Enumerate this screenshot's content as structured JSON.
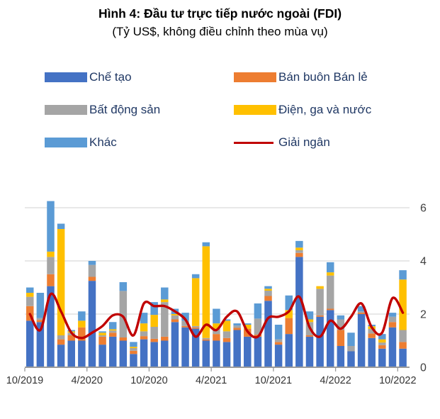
{
  "title": "Hình 4: Đầu tư trực tiếp nước ngoài (FDI)",
  "subtitle": "(Tỷ US$, không điều chỉnh theo mùa vụ)",
  "colors": {
    "manufacturing_blue": "#4472C4",
    "wholesale_orange": "#ED7D31",
    "real_estate_gray": "#A5A5A5",
    "electricity_yellow": "#FFC000",
    "other_light_blue": "#5B9BD5",
    "disbursement_red": "#C00000",
    "gridline": "#D9D9D9",
    "axis_line": "#9B9B9B",
    "axis_text": "#404040",
    "legend_text": "#203864"
  },
  "legend": {
    "items": [
      {
        "id": "che-tao",
        "label": "Chế tạo",
        "color": "#4472C4",
        "type": "bar"
      },
      {
        "id": "ban-buon-ban-le",
        "label": "Bán buôn Bán lẻ",
        "color": "#ED7D31",
        "type": "bar"
      },
      {
        "id": "bat-dong-san",
        "label": "Bất động sản",
        "color": "#A5A5A5",
        "type": "bar"
      },
      {
        "id": "dien-ga-nuoc",
        "label": "Điện, ga và nước",
        "color": "#FFC000",
        "type": "bar"
      },
      {
        "id": "khac",
        "label": "Khác",
        "color": "#5B9BD5",
        "type": "bar"
      },
      {
        "id": "giai-ngan",
        "label": "Giải ngân",
        "color": "#C00000",
        "type": "line"
      }
    ]
  },
  "chart_data": {
    "type": "bar",
    "stacked": true,
    "title": "Hình 4: Đầu tư trực tiếp nước ngoài (FDI)",
    "subtitle": "(Tỷ US$, không điều chỉnh theo mùa vụ)",
    "unit": "Tỷ US$",
    "grid": true,
    "legend_position": "top",
    "y_axis_side": "right",
    "ylim": [
      0,
      6
    ],
    "yticks": [
      0,
      2,
      4,
      6
    ],
    "x": [
      "10/2019",
      "11/2019",
      "12/2019",
      "1/2020",
      "2/2020",
      "3/2020",
      "4/2020",
      "5/2020",
      "6/2020",
      "7/2020",
      "8/2020",
      "9/2020",
      "10/2020",
      "11/2020",
      "12/2020",
      "1/2021",
      "2/2021",
      "3/2021",
      "4/2021",
      "5/2021",
      "6/2021",
      "7/2021",
      "8/2021",
      "9/2021",
      "10/2021",
      "11/2021",
      "12/2021",
      "1/2022",
      "2/2022",
      "3/2022",
      "4/2022",
      "5/2022",
      "6/2022",
      "7/2022",
      "8/2022",
      "9/2022",
      "10/2022"
    ],
    "x_tick_labels": [
      "10/2019",
      "4/2020",
      "10/2020",
      "4/2021",
      "10/2021",
      "4/2022",
      "10/2022"
    ],
    "x_tick_every": 6,
    "series": [
      {
        "name": "Chế tạo",
        "color": "#4472C4",
        "values": [
          1.75,
          1.7,
          3.05,
          0.85,
          1.0,
          1.0,
          3.25,
          0.85,
          1.15,
          1.0,
          0.5,
          1.05,
          0.95,
          1.0,
          1.7,
          1.5,
          1.45,
          1.0,
          1.0,
          0.95,
          1.4,
          1.15,
          1.15,
          2.5,
          0.85,
          1.25,
          4.15,
          1.15,
          1.9,
          2.15,
          0.8,
          0.6,
          2.0,
          1.1,
          0.7,
          1.5,
          0.7
        ]
      },
      {
        "name": "Bán buôn Bán lẻ",
        "color": "#ED7D31",
        "values": [
          0.55,
          0.08,
          0.45,
          0.2,
          0.2,
          0.5,
          0.15,
          0.3,
          0.15,
          0.12,
          0.12,
          0.12,
          0.12,
          0.15,
          0.1,
          0.05,
          0.05,
          0.05,
          0.25,
          0.15,
          0.08,
          0.3,
          0.08,
          0.18,
          0.1,
          0.6,
          0.15,
          0.05,
          0.05,
          0.05,
          0.6,
          0.0,
          0.05,
          0.17,
          0.13,
          0.2,
          0.25
        ]
      },
      {
        "name": "Bất động sản",
        "color": "#A5A5A5",
        "values": [
          0.35,
          0.07,
          0.65,
          0.15,
          0.1,
          0.0,
          0.45,
          0.05,
          0.08,
          1.75,
          0.1,
          0.18,
          0.45,
          1.3,
          0.15,
          0.2,
          0.05,
          0.05,
          0.2,
          0.25,
          0.09,
          0.0,
          0.6,
          0.2,
          0.1,
          0.0,
          0.1,
          0.5,
          1.0,
          1.25,
          0.4,
          0.2,
          0.05,
          0.17,
          0.1,
          0.2,
          0.45
        ]
      },
      {
        "name": "Điện, ga và nước",
        "color": "#FFC000",
        "values": [
          0.15,
          0.0,
          0.2,
          4.0,
          0.05,
          0.25,
          0.0,
          0.1,
          0.05,
          0.0,
          0.05,
          0.3,
          0.45,
          0.1,
          0.05,
          0.0,
          1.8,
          3.45,
          0.2,
          0.4,
          0.0,
          0.15,
          0.0,
          0.07,
          0.0,
          0.3,
          0.1,
          0.1,
          0.1,
          0.12,
          0.0,
          0.0,
          0.0,
          0.1,
          0.12,
          0.0,
          1.9
        ]
      },
      {
        "name": "Khác",
        "color": "#5B9BD5",
        "values": [
          0.2,
          0.95,
          1.9,
          0.2,
          0.05,
          0.35,
          0.15,
          0.05,
          0.27,
          0.33,
          0.18,
          0.4,
          0.48,
          0.45,
          0.2,
          0.3,
          0.15,
          0.15,
          0.55,
          0.05,
          0.08,
          0.05,
          0.57,
          0.1,
          0.55,
          0.55,
          0.25,
          0.3,
          0.0,
          0.38,
          0.15,
          0.5,
          0.2,
          0.06,
          0.2,
          0.15,
          0.35
        ]
      }
    ],
    "line_series": {
      "name": "Giải ngân",
      "color": "#C00000",
      "values": [
        2.0,
        1.4,
        2.75,
        2.1,
        1.3,
        1.1,
        1.3,
        1.55,
        1.95,
        1.9,
        1.2,
        2.4,
        2.3,
        2.3,
        2.1,
        1.8,
        1.15,
        1.6,
        1.4,
        1.9,
        2.1,
        1.35,
        1.15,
        1.85,
        1.9,
        2.1,
        2.65,
        1.5,
        1.15,
        1.75,
        1.45,
        1.9,
        2.4,
        1.5,
        1.3,
        2.6,
        2.05
      ]
    }
  }
}
